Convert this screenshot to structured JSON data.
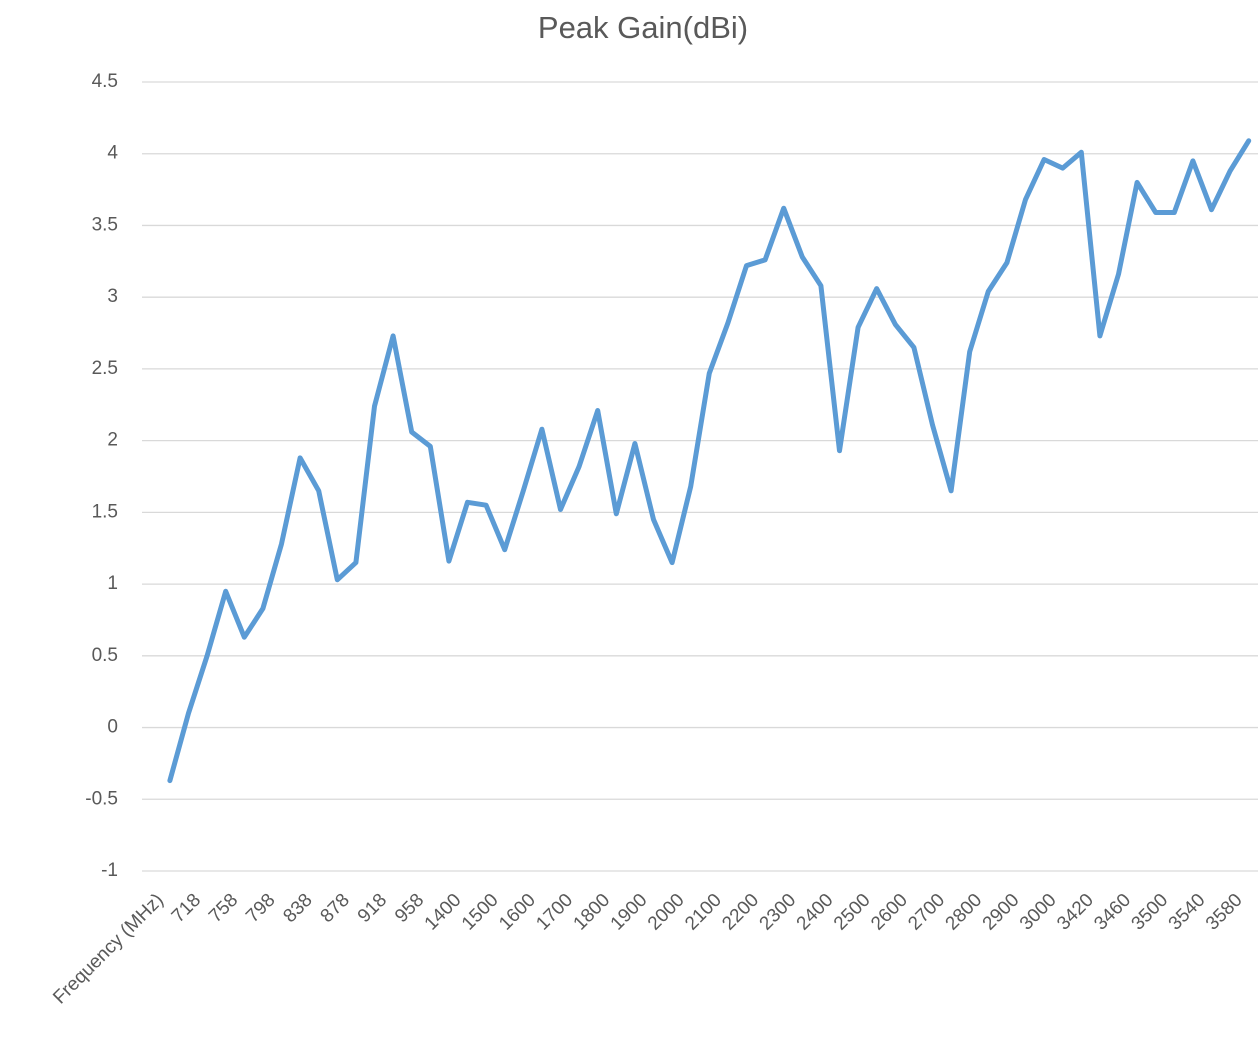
{
  "chart_data": {
    "type": "line",
    "title": "Peak Gain(dBi)",
    "categories": [
      "Frequency  (MHz)",
      null,
      "718",
      null,
      "758",
      null,
      "798",
      null,
      "838",
      null,
      "878",
      null,
      "918",
      null,
      "958",
      null,
      "1400",
      null,
      "1500",
      null,
      "1600",
      null,
      "1700",
      null,
      "1800",
      null,
      "1900",
      null,
      "2000",
      null,
      "2100",
      null,
      "2200",
      null,
      "2300",
      null,
      "2400",
      null,
      "2500",
      null,
      "2600",
      null,
      "2700",
      null,
      "2800",
      null,
      "2900",
      null,
      "3000",
      null,
      "3420",
      null,
      "3460",
      null,
      "3500",
      null,
      "3540",
      null,
      "3580",
      null
    ],
    "series": [
      {
        "name": "Peak Gain(dBi)",
        "color": "#5b9bd5",
        "values": [
          null,
          -0.37,
          0.1,
          0.5,
          0.95,
          0.63,
          0.83,
          1.28,
          1.88,
          1.65,
          1.03,
          1.15,
          2.24,
          2.73,
          2.06,
          1.96,
          1.16,
          1.57,
          1.55,
          1.24,
          1.65,
          2.08,
          1.52,
          1.82,
          2.21,
          1.49,
          1.98,
          1.45,
          1.15,
          1.68,
          2.47,
          2.82,
          3.22,
          3.26,
          3.62,
          3.28,
          3.08,
          1.93,
          2.79,
          3.06,
          2.81,
          2.65,
          2.11,
          1.65,
          2.62,
          3.04,
          3.24,
          3.68,
          3.96,
          3.9,
          4.01,
          2.73,
          3.16,
          3.8,
          3.59,
          3.59,
          3.95,
          3.61,
          3.88,
          4.09
        ]
      }
    ],
    "ylim": [
      -1,
      4.5
    ],
    "yticks": [
      -1,
      -0.5,
      0,
      0.5,
      1,
      1.5,
      2,
      2.5,
      3,
      3.5,
      4,
      4.5
    ],
    "grid": true
  }
}
